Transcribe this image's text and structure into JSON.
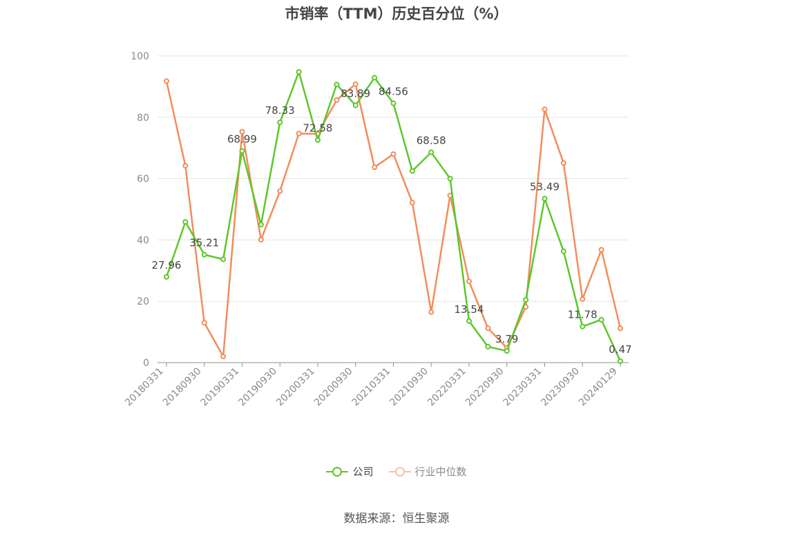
{
  "chart_data": {
    "type": "line",
    "title": "市销率（TTM）历史百分位（%）",
    "source": "数据来源：恒生聚源",
    "xlabel": "",
    "ylabel": "",
    "ylim": [
      0,
      100
    ],
    "yticks": [
      "0",
      "20",
      "40",
      "60",
      "80",
      "100"
    ],
    "grid": true,
    "legend_position": "bottom",
    "x_tick_labels": [
      "20180331",
      "20180930",
      "20190331",
      "20190930",
      "20200331",
      "20200930",
      "20210331",
      "20210930",
      "20220331",
      "20220930",
      "20230331",
      "20230930",
      "20240129"
    ],
    "x": [
      "20180331",
      "20180630",
      "20180930",
      "20181231",
      "20190331",
      "20190630",
      "20190930",
      "20191231",
      "20200331",
      "20200630",
      "20200930",
      "20201231",
      "20210331",
      "20210630",
      "20210930",
      "20211231",
      "20220331",
      "20220630",
      "20220930",
      "20221231",
      "20230331",
      "20230630",
      "20230930",
      "20231231",
      "20240129"
    ],
    "series": [
      {
        "name": "公司",
        "color": "#5cc72a",
        "values": [
          27.96,
          45.9,
          35.21,
          33.7,
          68.99,
          45.0,
          78.33,
          94.8,
          72.58,
          90.7,
          83.89,
          92.9,
          84.56,
          62.5,
          68.58,
          60.0,
          13.54,
          5.2,
          3.79,
          20.5,
          53.49,
          36.3,
          11.78,
          14.0,
          0.47
        ],
        "labels": [
          "27.96",
          "",
          "35.21",
          "",
          "68.99",
          "",
          "78.33",
          "",
          "72.58",
          "",
          "83.89",
          "",
          "84.56",
          "",
          "68.58",
          "",
          "13.54",
          "",
          "3.79",
          "",
          "53.49",
          "",
          "11.78",
          "",
          "0.47"
        ]
      },
      {
        "name": "行业中位数",
        "color": "#f28c5a",
        "values": [
          91.8,
          64.2,
          13.0,
          2.0,
          75.3,
          40.1,
          55.9,
          74.7,
          74.6,
          85.6,
          90.8,
          63.7,
          68.0,
          52.2,
          16.5,
          54.5,
          26.5,
          11.2,
          4.8,
          18.2,
          82.6,
          65.1,
          20.7,
          36.8,
          11.2
        ]
      }
    ]
  }
}
